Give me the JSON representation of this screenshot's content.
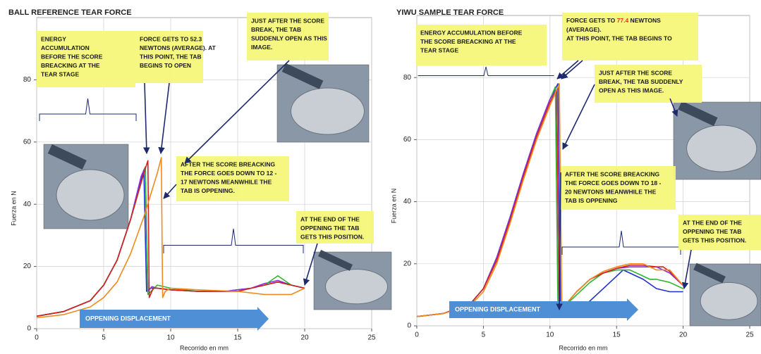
{
  "chart_data": [
    {
      "type": "line",
      "title": "BALL REFERENCE TEAR FORCE",
      "x_label": "Recorrido en mm",
      "y_label": "Fuerza en N",
      "xlim": [
        0,
        25
      ],
      "xticks": [
        0,
        5,
        10,
        15,
        20,
        25
      ],
      "ylim": [
        0,
        100
      ],
      "yticks": [
        0,
        20,
        40,
        60,
        80
      ],
      "grid": true,
      "series": [
        {
          "color": "#1f2fd0",
          "x": [
            0,
            2,
            4,
            5,
            6,
            7,
            7.8,
            8.0,
            8.2,
            8.5,
            9,
            10,
            12,
            14,
            16,
            17,
            18,
            19,
            20
          ],
          "values": [
            4,
            5.5,
            9,
            14,
            22,
            35,
            48,
            51,
            12,
            13,
            13,
            12.5,
            12,
            12,
            13,
            14,
            15,
            14,
            13
          ]
        },
        {
          "color": "#8a2be2",
          "x": [
            0,
            2,
            4,
            5,
            6,
            7,
            7.8,
            8.1,
            8.3,
            8.6,
            9,
            10,
            12,
            14,
            16,
            17,
            18,
            19,
            20
          ],
          "values": [
            4,
            5.5,
            9,
            14,
            22,
            35,
            49,
            52,
            12,
            13.5,
            13,
            12.5,
            12,
            12,
            13,
            14.5,
            15.5,
            14,
            13
          ]
        },
        {
          "color": "#2fb52f",
          "x": [
            0,
            2,
            4,
            5,
            6,
            7,
            8,
            8.1,
            8.3,
            9,
            10,
            12,
            15,
            17,
            18,
            19,
            20
          ],
          "values": [
            4,
            5.5,
            9,
            14,
            22,
            35,
            50,
            52,
            11,
            14,
            13,
            12,
            12,
            14,
            17,
            14,
            13
          ]
        },
        {
          "color": "#d42020",
          "x": [
            0,
            2,
            4,
            5,
            6,
            7,
            8,
            8.3,
            8.4,
            8.7,
            9,
            10,
            12,
            15,
            17,
            18,
            19,
            20
          ],
          "values": [
            4,
            5.5,
            9,
            14,
            22,
            35,
            50,
            54,
            10,
            13,
            13,
            12.5,
            12,
            12,
            14,
            15,
            14,
            13
          ]
        },
        {
          "color": "#f08a1c",
          "x": [
            0,
            2,
            4,
            5,
            6,
            7,
            8,
            9,
            9.3,
            9.4,
            9.6,
            10,
            12,
            15,
            17,
            18,
            19,
            20
          ],
          "values": [
            3.5,
            4.5,
            7,
            10,
            15,
            24,
            36,
            50,
            55,
            10,
            12,
            13,
            12.5,
            12,
            11,
            11,
            11,
            13
          ]
        }
      ],
      "annotations": [
        {
          "lines": [
            "ENERGY",
            "ACCUMULATION",
            "BEFORE THE SCORE",
            "BREACKING AT THE",
            "TEAR STAGE"
          ]
        },
        {
          "lines": [
            "FORCE GETS TO 52.3",
            "NEWTONS (AVERAGE). AT",
            "THIS POINT, THE TAB",
            "BEGINS TO OPEN"
          ]
        },
        {
          "lines": [
            "JUST AFTER THE SCORE",
            "BREAK, THE TAB",
            "SUDDENLY OPEN AS THIS",
            "IMAGE."
          ]
        },
        {
          "lines": [
            "AFTER THE SCORE BREACKING",
            "THE FORCE GOES DOWN TO 12 -",
            "17 NEWTONS MEANWHILE THE",
            "TAB IS OPPENING."
          ]
        },
        {
          "lines": [
            "AT THE END OF THE",
            "OPPENING  THE TAB",
            "GETS THIS POSITION."
          ]
        }
      ],
      "displacement_label": "OPPENING DISPLACEMENT"
    },
    {
      "type": "line",
      "title": "YIWU SAMPLE TEAR FORCE",
      "x_label": "Recorrido en mm",
      "y_label": "Fuerza en N",
      "xlim": [
        0,
        25
      ],
      "xticks": [
        0,
        5,
        10,
        15,
        20,
        25
      ],
      "ylim": [
        0,
        100
      ],
      "yticks": [
        0,
        20,
        40,
        60,
        80
      ],
      "grid": true,
      "series": [
        {
          "color": "#1f2fd0",
          "x": [
            0,
            2,
            4,
            5,
            6,
            7,
            8,
            9,
            10,
            10.6,
            10.8,
            11,
            12,
            13,
            14,
            15,
            15.5,
            16,
            17,
            18,
            19,
            20
          ],
          "values": [
            3,
            4,
            7,
            12,
            22,
            35,
            49,
            62,
            73,
            78,
            4,
            3,
            5,
            8,
            12,
            16,
            18,
            17,
            15,
            12,
            11,
            11
          ]
        },
        {
          "color": "#2fb52f",
          "x": [
            0,
            2,
            4,
            5,
            6,
            7,
            8,
            9,
            10,
            10.4,
            10.6,
            11,
            12,
            13,
            14,
            15,
            16,
            17,
            17.5,
            18,
            19,
            20
          ],
          "values": [
            3,
            4,
            7,
            12,
            22,
            35,
            49,
            62,
            73,
            77,
            5,
            6,
            10,
            14,
            17,
            18,
            18,
            16,
            15,
            15,
            14,
            12
          ]
        },
        {
          "color": "#8a2be2",
          "x": [
            0,
            2,
            4,
            5,
            6,
            7,
            8,
            9,
            10,
            10.5,
            10.7,
            11,
            12,
            13,
            14,
            15,
            16,
            17,
            18,
            18.5,
            19,
            20
          ],
          "values": [
            3,
            4,
            7,
            12,
            22,
            35,
            49,
            62,
            73,
            76,
            4,
            6,
            11,
            15,
            17,
            18.5,
            19,
            19,
            19,
            18,
            17,
            13
          ]
        },
        {
          "color": "#d42020",
          "x": [
            0,
            2,
            4,
            5,
            6,
            7,
            8,
            9,
            10,
            10.5,
            10.7,
            11,
            12,
            13,
            14,
            15,
            16,
            17,
            18,
            18.5,
            19,
            20
          ],
          "values": [
            3,
            4,
            7,
            12,
            21,
            34,
            48,
            61,
            72,
            76,
            4,
            6,
            11,
            15,
            17,
            18.5,
            19.5,
            19.5,
            19,
            19,
            17.5,
            13
          ]
        },
        {
          "color": "#f08a1c",
          "x": [
            0,
            2,
            4,
            5,
            6,
            7,
            8,
            9,
            10,
            10.7,
            10.9,
            11,
            12,
            13,
            14,
            15,
            16,
            17,
            18,
            19,
            20
          ],
          "values": [
            3,
            4,
            6.5,
            11,
            20,
            33,
            47,
            60,
            71,
            78,
            4,
            6,
            11,
            15,
            17.5,
            19,
            20,
            20,
            18,
            18,
            13
          ]
        }
      ],
      "annotations": [
        {
          "lines": [
            "ENERGY ACCUMULATION BEFORE",
            "THE SCORE BREACKING AT THE",
            "TEAR STAGE"
          ]
        },
        {
          "lines": [
            [
              "FORCE GETS TO ",
              {
                "text": "77.4",
                "color": "#e03a1e"
              },
              " NEWTONS"
            ],
            "(AVERAGE).",
            "AT THIS POINT, THE TAB BEGINS TO"
          ]
        },
        {
          "lines": [
            "JUST AFTER THE SCORE",
            "BREAK, THE TAB SUDDENLY",
            "OPEN AS THIS IMAGE."
          ]
        },
        {
          "lines": [
            "AFTER THE SCORE BREACKING",
            "THE FORCE GOES DOWN TO 18 -",
            "20 NEWTONS MEANWHILE THE",
            "TAB IS OPPENING"
          ]
        },
        {
          "lines": [
            "AT THE END OF THE",
            "OPPENING  THE TAB",
            "GETS THIS POSITION."
          ]
        }
      ],
      "displacement_label": "OPPENING DISPLACEMENT"
    }
  ]
}
